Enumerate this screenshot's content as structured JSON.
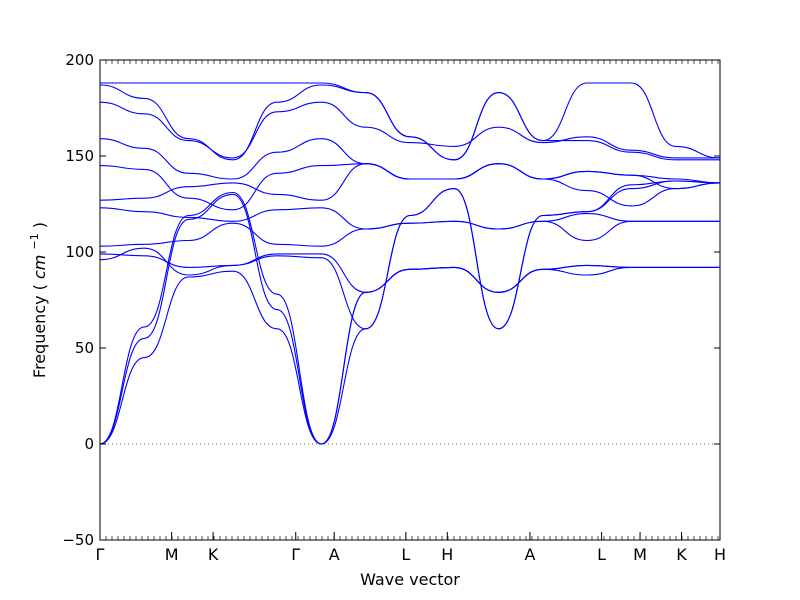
{
  "chart_data": {
    "type": "line",
    "title": "",
    "xlabel": "Wave vector",
    "ylabel": "Frequency",
    "ylabel_unit": "cm",
    "ylabel_unit_exp": "−1",
    "ylim": [
      -50,
      200
    ],
    "yticks": [
      -50,
      0,
      50,
      100,
      150,
      200
    ],
    "grid": false,
    "legend": "none",
    "colors": {
      "bands": "#0000ff",
      "zero_line": "#666666",
      "axes": "#000000"
    },
    "xticks": [
      {
        "label": "Γ",
        "position": 0.0
      },
      {
        "label": "M",
        "position": 0.577
      },
      {
        "label": "K",
        "position": 0.911
      },
      {
        "label": "Γ",
        "position": 1.577
      },
      {
        "label": "A",
        "position": 1.887
      },
      {
        "label": "L",
        "position": 2.464
      },
      {
        "label": "H",
        "position": 2.798
      },
      {
        "label": "A",
        "position": 3.464
      },
      {
        "label": "L",
        "position": 4.041
      },
      {
        "label": "M",
        "position": 4.351
      },
      {
        "label": "K",
        "position": 4.685
      },
      {
        "label": "H",
        "position": 4.995
      }
    ],
    "zero_line": {
      "y": 0,
      "style": "dotted"
    },
    "series": [
      {
        "values": [
          0,
          61,
          119,
          131,
          78,
          0,
          60,
          119,
          133,
          60,
          119,
          121,
          133,
          137,
          136
        ]
      },
      {
        "values": [
          0,
          55,
          117,
          130,
          70,
          0,
          79,
          91,
          92,
          79,
          91,
          93,
          92,
          92,
          92
        ]
      },
      {
        "values": [
          0,
          45,
          87,
          90,
          60,
          0,
          79,
          91,
          92,
          79,
          91,
          88,
          92,
          92,
          92
        ]
      },
      {
        "values": [
          96,
          102,
          88,
          93,
          98,
          97,
          60,
          119,
          133,
          60,
          119,
          121,
          135,
          137,
          136
        ]
      },
      {
        "values": [
          99,
          98,
          92,
          93,
          99,
          99,
          79,
          91,
          92,
          79,
          91,
          93,
          92,
          92,
          92
        ]
      },
      {
        "values": [
          103,
          104,
          106,
          115,
          104,
          103,
          112,
          115,
          116,
          112,
          116,
          106,
          116,
          116,
          116
        ]
      },
      {
        "values": [
          123,
          121,
          118,
          116,
          122,
          123,
          112,
          115,
          116,
          112,
          116,
          120,
          116,
          116,
          116
        ]
      },
      {
        "values": [
          127,
          128,
          134,
          136,
          130,
          127,
          146,
          138,
          138,
          146,
          138,
          142,
          140,
          133,
          136
        ]
      },
      {
        "values": [
          145,
          143,
          128,
          122,
          141,
          145,
          146,
          138,
          138,
          146,
          138,
          132,
          124,
          133,
          136
        ]
      },
      {
        "values": [
          159,
          154,
          141,
          138,
          152,
          159,
          146,
          138,
          138,
          146,
          138,
          142,
          140,
          138,
          136
        ]
      },
      {
        "values": [
          178,
          172,
          158,
          149,
          173,
          178,
          165,
          157,
          155,
          165,
          157,
          160,
          153,
          149,
          149
        ]
      },
      {
        "values": [
          187,
          180,
          159,
          148,
          178,
          187,
          183,
          160,
          148,
          183,
          158,
          158,
          152,
          148,
          148
        ]
      },
      {
        "values": [
          188,
          188,
          188,
          188,
          188,
          188,
          183,
          160,
          148,
          183,
          158,
          188,
          188,
          155,
          149
        ]
      }
    ]
  }
}
